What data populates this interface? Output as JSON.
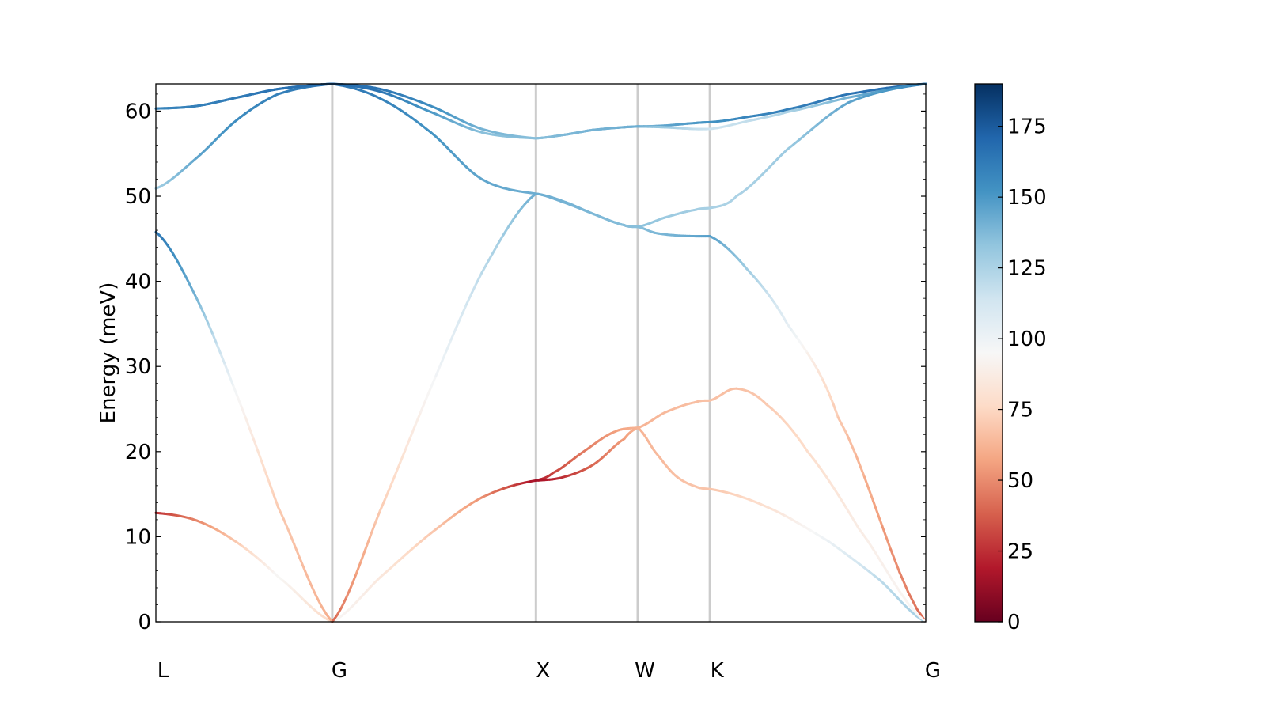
{
  "chart_data": {
    "type": "line",
    "title": "",
    "xlabel": "",
    "ylabel": "Energy (meV)",
    "ylim": [
      0,
      63.2
    ],
    "yticks": [
      0,
      10,
      20,
      30,
      40,
      50,
      60
    ],
    "path_points": [
      {
        "label": "L",
        "x": 0.0
      },
      {
        "label": "G",
        "x": 0.866
      },
      {
        "label": "X",
        "x": 1.866
      },
      {
        "label": "W",
        "x": 2.366
      },
      {
        "label": "K",
        "x": 2.72
      },
      {
        "label": "G",
        "x": 3.78
      }
    ],
    "xlim": [
      0,
      3.78
    ],
    "colorbar": {
      "colormap": "RdBu",
      "min": 0,
      "max": 190,
      "ticks": [
        0,
        25,
        50,
        75,
        100,
        125,
        150,
        175
      ]
    },
    "series": [
      {
        "segments": [
          {
            "x": [
              0.0,
              0.2,
              0.4,
              0.6,
              0.866
            ],
            "y": [
              12.8,
              11.9,
              9.3,
              5.3,
              0.0
            ],
            "c": [
              25,
              48,
              70,
              95,
              75
            ]
          },
          {
            "x": [
              0.866,
              1.1,
              1.35,
              1.6,
              1.866
            ],
            "y": [
              0.0,
              5.2,
              10.4,
              14.6,
              16.6
            ],
            "c": [
              95,
              85,
              70,
              52,
              15
            ]
          },
          {
            "x": [
              1.866,
              1.95,
              2.1,
              2.25,
              2.366
            ],
            "y": [
              16.6,
              17.5,
              20.0,
              22.3,
              22.8
            ],
            "c": [
              15,
              30,
              45,
              55,
              62
            ]
          },
          {
            "x": [
              2.366,
              2.45,
              2.55,
              2.65,
              2.72
            ],
            "y": [
              22.8,
              20.0,
              17.2,
              15.9,
              15.6
            ],
            "c": [
              62,
              64,
              66,
              68,
              68
            ]
          },
          {
            "x": [
              2.72,
              3.0,
              3.3,
              3.55,
              3.78
            ],
            "y": [
              15.6,
              13.5,
              9.5,
              5.0,
              0.0
            ],
            "c": [
              68,
              80,
              100,
              120,
              128
            ]
          }
        ]
      },
      {
        "segments": [
          {
            "x": [
              0.0,
              0.2,
              0.4,
              0.6,
              0.866
            ],
            "y": [
              45.8,
              38.0,
              26.5,
              13.5,
              0.0
            ],
            "c": [
              165,
              140,
              95,
              70,
              60
            ]
          },
          {
            "x": [
              0.866,
              1.1,
              1.35,
              1.6,
              1.866
            ],
            "y": [
              0.0,
              13.0,
              27.5,
              41.0,
              50.3
            ],
            "c": [
              40,
              70,
              95,
              120,
              142
            ]
          },
          {
            "x": [
              1.866,
              2.0,
              2.15,
              2.3,
              2.366
            ],
            "y": [
              50.3,
              49.4,
              47.9,
              46.6,
              46.4
            ],
            "c": [
              142,
              140,
              138,
              136,
              135
            ]
          },
          {
            "x": [
              2.366,
              2.5,
              2.65,
              2.72
            ],
            "y": [
              46.4,
              47.5,
              48.4,
              48.6
            ],
            "c": [
              135,
              130,
              128,
              126
            ]
          },
          {
            "x": [
              2.72,
              2.85,
              3.1,
              3.4,
              3.78
            ],
            "y": [
              48.6,
              50.0,
              55.5,
              61.0,
              63.2
            ],
            "c": [
              126,
              125,
              130,
              145,
              160
            ]
          }
        ]
      },
      {
        "segments": [
          {
            "x": [
              0.0,
              0.2,
              0.4,
              0.6,
              0.866
            ],
            "y": [
              50.9,
              54.5,
              59.0,
              62.0,
              63.2
            ],
            "c": [
              128,
              145,
              155,
              160,
              165
            ]
          },
          {
            "x": [
              0.866,
              1.1,
              1.35,
              1.6,
              1.866
            ],
            "y": [
              63.2,
              61.5,
              57.5,
              52.0,
              50.3
            ],
            "c": [
              165,
              160,
              152,
              145,
              142
            ]
          },
          {
            "x": [
              1.866,
              2.0,
              2.15,
              2.3,
              2.366
            ],
            "y": [
              50.3,
              49.3,
              47.9,
              46.6,
              46.4
            ],
            "c": [
              142,
              140,
              138,
              136,
              135
            ]
          },
          {
            "x": [
              2.366,
              2.45,
              2.55,
              2.65,
              2.72
            ],
            "y": [
              46.4,
              45.7,
              45.4,
              45.3,
              45.3
            ],
            "c": [
              135,
              138,
              140,
              145,
              148
            ]
          },
          {
            "x": [
              2.72,
              2.9,
              3.1,
              3.35,
              3.78
            ],
            "y": [
              45.3,
              41.5,
              35.0,
              24.0,
              0.0
            ],
            "c": [
              148,
              130,
              105,
              70,
              40
            ]
          }
        ]
      },
      {
        "segments": [
          {
            "x": [
              0.0,
              0.2,
              0.4,
              0.6,
              0.866
            ],
            "y": [
              60.3,
              60.6,
              61.6,
              62.6,
              63.2
            ],
            "c": [
              160,
              162,
              165,
              168,
              170
            ]
          },
          {
            "x": [
              0.866,
              1.1,
              1.35,
              1.6,
              1.866
            ],
            "y": [
              63.2,
              62.3,
              59.9,
              57.5,
              56.8
            ],
            "c": [
              170,
              165,
              150,
              135,
              135
            ]
          },
          {
            "x": [
              1.866,
              2.0,
              2.15,
              2.366
            ],
            "y": [
              56.8,
              57.2,
              57.8,
              58.2
            ],
            "c": [
              135,
              138,
              140,
              142
            ]
          },
          {
            "x": [
              2.366,
              2.5,
              2.65,
              2.72
            ],
            "y": [
              58.2,
              58.3,
              58.6,
              58.7
            ],
            "c": [
              142,
              145,
              150,
              152
            ]
          },
          {
            "x": [
              2.72,
              2.9,
              3.1,
              3.4,
              3.78
            ],
            "y": [
              58.7,
              59.3,
              60.2,
              62.0,
              63.2
            ],
            "c": [
              152,
              158,
              160,
              165,
              170
            ]
          }
        ]
      },
      {
        "segments": [
          {
            "x": [
              0.0,
              0.2,
              0.4,
              0.6,
              0.866
            ],
            "y": [
              60.3,
              60.6,
              61.6,
              62.6,
              63.2
            ],
            "c": [
              158,
              160,
              162,
              166,
              168
            ]
          },
          {
            "x": [
              0.866,
              1.1,
              1.35,
              1.6,
              1.866
            ],
            "y": [
              63.2,
              62.6,
              60.6,
              57.9,
              56.8
            ],
            "c": [
              168,
              165,
              155,
              140,
              135
            ]
          },
          {
            "x": [
              1.866,
              2.0,
              2.15,
              2.366
            ],
            "y": [
              56.8,
              57.2,
              57.8,
              58.2
            ],
            "c": [
              135,
              138,
              140,
              142
            ]
          },
          {
            "x": [
              2.366,
              2.5,
              2.65,
              2.72
            ],
            "y": [
              58.2,
              58.1,
              57.9,
              57.9
            ],
            "c": [
              142,
              130,
              118,
              115
            ]
          },
          {
            "x": [
              2.72,
              2.9,
              3.1,
              3.4,
              3.78
            ],
            "y": [
              57.9,
              58.8,
              59.9,
              61.6,
              63.2
            ],
            "c": [
              115,
              118,
              125,
              140,
              160
            ]
          }
        ]
      },
      {
        "segments": [
          {
            "x": [
              1.866,
              2.0,
              2.15,
              2.3,
              2.366
            ],
            "y": [
              16.6,
              17.0,
              18.5,
              21.5,
              22.8
            ],
            "c": [
              15,
              25,
              40,
              55,
              62
            ]
          },
          {
            "x": [
              2.366,
              2.5,
              2.65,
              2.72
            ],
            "y": [
              22.8,
              24.6,
              25.8,
              26.0
            ],
            "c": [
              62,
              64,
              66,
              67
            ]
          },
          {
            "x": [
              2.72,
              2.85,
              3.0,
              3.2,
              3.45,
              3.78
            ],
            "y": [
              26.0,
              27.4,
              25.5,
              20.0,
              11.0,
              0.0
            ],
            "c": [
              67,
              66,
              70,
              78,
              88,
              95
            ]
          }
        ]
      }
    ]
  }
}
